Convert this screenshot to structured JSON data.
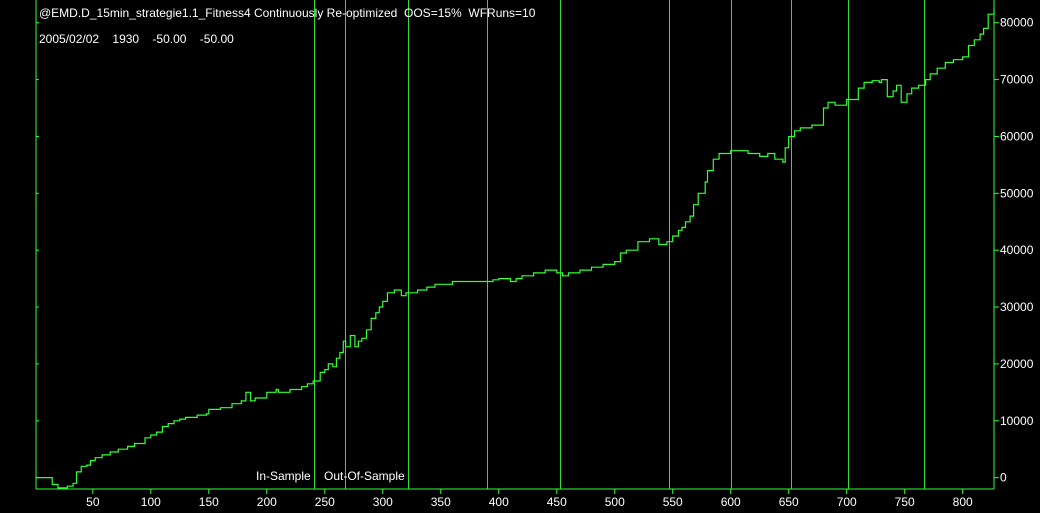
{
  "header": {
    "title": "@EMD.D_15min_strategie1.1_Fitness4 Continuously Re-optimized  OOS=15%  WFRuns=10",
    "status_line": "2005/02/02    1930    -50.00    -50.00"
  },
  "labels": {
    "in_sample": "In-Sample",
    "out_of_sample": "Out-Of-Sample"
  },
  "colors": {
    "background": "#000000",
    "line": "#33ff33",
    "walkforward_lines": "#33dd33",
    "axes": "#33ff33",
    "text": "#ffffff"
  },
  "chart_data": {
    "type": "line",
    "xlim": [
      1,
      827
    ],
    "ylim": [
      -2000,
      84000
    ],
    "x_ticks": [
      50,
      100,
      150,
      200,
      250,
      300,
      350,
      400,
      450,
      500,
      550,
      600,
      650,
      700,
      750,
      800
    ],
    "y_ticks": [
      0,
      10000,
      20000,
      30000,
      40000,
      50000,
      60000,
      70000,
      80000
    ],
    "y_tick_labels": [
      "0",
      "10000",
      "20000",
      "30000",
      "40000",
      "50000",
      "60000",
      "70000",
      "80000"
    ],
    "walk_forward_boundaries": [
      241,
      267,
      322,
      390,
      453,
      547,
      600,
      652,
      701,
      767
    ],
    "series": [
      {
        "x": [
          1,
          12,
          15,
          20,
          28,
          33,
          36,
          40,
          45,
          48,
          52,
          58,
          65,
          72,
          80,
          86,
          95,
          100,
          105,
          110,
          115,
          120,
          125,
          130,
          140,
          148,
          150,
          160,
          170,
          178,
          182,
          186,
          190,
          200,
          208,
          210,
          220,
          230,
          235,
          240,
          246,
          250,
          253,
          257,
          260,
          263,
          266,
          268,
          272,
          276,
          279,
          282,
          286,
          290,
          294,
          297,
          300,
          304,
          310,
          316,
          320,
          330,
          338,
          345,
          360,
          380,
          395,
          400,
          410,
          415,
          420,
          430,
          440,
          450,
          455,
          460,
          470,
          480,
          490,
          500,
          505,
          510,
          520,
          530,
          538,
          545,
          550,
          555,
          558,
          561,
          565,
          568,
          572,
          578,
          580,
          585,
          590,
          600,
          610,
          615,
          625,
          632,
          638,
          645,
          647,
          650,
          655,
          660,
          670,
          680,
          684,
          690,
          700,
          710,
          715,
          722,
          728,
          730,
          735,
          740,
          743,
          747,
          752,
          756,
          762,
          768,
          772,
          778,
          785,
          792,
          800,
          805,
          810,
          815,
          818,
          822,
          827
        ],
        "y": [
          0,
          0,
          -1200,
          -1800,
          -1500,
          -1000,
          1000,
          2000,
          2200,
          3000,
          3500,
          4000,
          4500,
          5000,
          5500,
          6000,
          7000,
          7500,
          8000,
          9000,
          9500,
          10000,
          10300,
          10600,
          11000,
          11200,
          12000,
          12300,
          13000,
          13500,
          15000,
          13500,
          14000,
          15000,
          15500,
          15000,
          15500,
          16000,
          16500,
          17000,
          18500,
          19000,
          20000,
          19500,
          21000,
          22000,
          24000,
          23000,
          25000,
          23000,
          24000,
          24500,
          26000,
          28000,
          29000,
          30000,
          31000,
          32500,
          33000,
          32000,
          32500,
          33000,
          33500,
          34000,
          34500,
          34500,
          34800,
          35000,
          34500,
          35000,
          35500,
          36000,
          36500,
          36000,
          35500,
          36000,
          36500,
          37000,
          37500,
          38000,
          39500,
          40000,
          41500,
          42000,
          41000,
          41500,
          42500,
          43500,
          44000,
          45000,
          46000,
          48000,
          50000,
          52000,
          54000,
          56000,
          57000,
          57500,
          57500,
          57000,
          56500,
          57000,
          56000,
          55500,
          58000,
          60000,
          61000,
          61500,
          62000,
          65000,
          66000,
          65500,
          66500,
          68500,
          69500,
          69800,
          69500,
          70000,
          67000,
          68000,
          69000,
          66000,
          67500,
          68500,
          69000,
          70000,
          71000,
          72000,
          73000,
          73500,
          74000,
          76000,
          77000,
          78000,
          79000,
          81500,
          82500
        ]
      }
    ]
  }
}
